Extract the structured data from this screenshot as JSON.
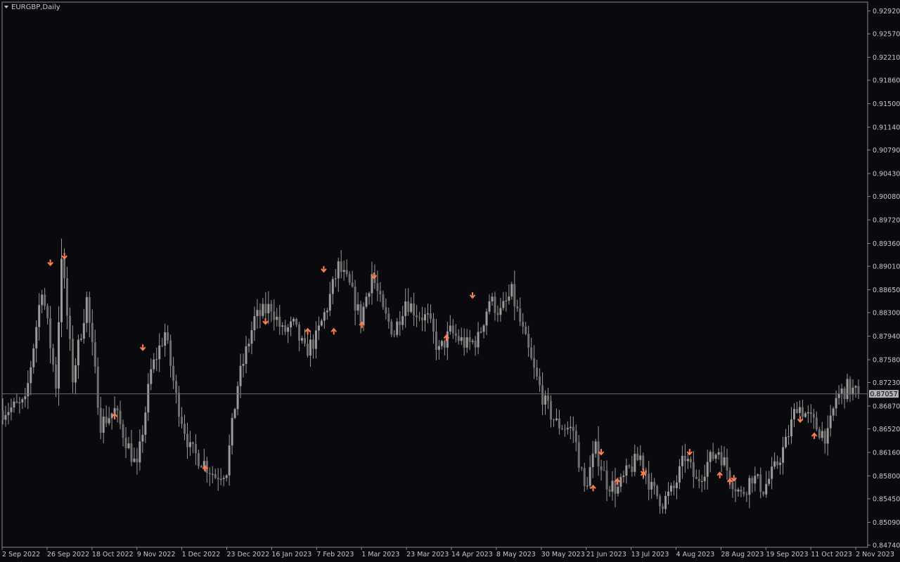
{
  "window": {
    "title": "EURGBP,Daily"
  },
  "price_axis": {
    "ticks": [
      "0.92920",
      "0.92570",
      "0.92210",
      "0.91860",
      "0.91500",
      "0.91140",
      "0.90790",
      "0.90430",
      "0.90080",
      "0.89720",
      "0.89360",
      "0.89010",
      "0.88650",
      "0.88300",
      "0.87940",
      "0.87580",
      "0.87230",
      "0.86870",
      "0.86520",
      "0.86160",
      "0.85800",
      "0.85450",
      "0.85090",
      "0.84740"
    ],
    "current_price": "0.87057"
  },
  "time_axis": {
    "labels": [
      "2 Sep 2022",
      "26 Sep 2022",
      "18 Oct 2022",
      "9 Nov 2022",
      "1 Dec 2022",
      "23 Dec 2022",
      "16 Jan 2023",
      "7 Feb 2023",
      "1 Mar 2023",
      "23 Mar 2023",
      "14 Apr 2023",
      "8 May 2023",
      "30 May 2023",
      "21 Jun 2023",
      "13 Jul 2023",
      "4 Aug 2023",
      "28 Aug 2023",
      "19 Sep 2023",
      "11 Oct 2023",
      "2 Nov 2023"
    ]
  },
  "colors": {
    "background": "#0a0a0e",
    "candle": "#9a9a9a",
    "arrow": "#ff7f50",
    "axis_text": "#c8c8c8",
    "price_line": "#6a6a6a"
  },
  "chart_data": {
    "type": "candlestick",
    "symbol": "EURGBP",
    "timeframe": "Daily",
    "ylim": [
      0.8474,
      0.9292
    ],
    "x_range": [
      "2 Sep 2022",
      "2 Nov 2023"
    ],
    "last_price": 0.87057,
    "price_path": [
      [
        0,
        0.868
      ],
      [
        8,
        0.869
      ],
      [
        14,
        0.887
      ],
      [
        19,
        0.872
      ],
      [
        21,
        0.892
      ],
      [
        25,
        0.873
      ],
      [
        30,
        0.885
      ],
      [
        35,
        0.866
      ],
      [
        40,
        0.868
      ],
      [
        48,
        0.859
      ],
      [
        53,
        0.874
      ],
      [
        58,
        0.88
      ],
      [
        62,
        0.87
      ],
      [
        67,
        0.862
      ],
      [
        72,
        0.86
      ],
      [
        76,
        0.858
      ],
      [
        80,
        0.859
      ],
      [
        84,
        0.872
      ],
      [
        90,
        0.882
      ],
      [
        96,
        0.884
      ],
      [
        100,
        0.88
      ],
      [
        104,
        0.881
      ],
      [
        108,
        0.877
      ],
      [
        112,
        0.879
      ],
      [
        116,
        0.884
      ],
      [
        120,
        0.89
      ],
      [
        124,
        0.887
      ],
      [
        128,
        0.882
      ],
      [
        132,
        0.889
      ],
      [
        136,
        0.883
      ],
      [
        140,
        0.88
      ],
      [
        144,
        0.885
      ],
      [
        148,
        0.883
      ],
      [
        152,
        0.882
      ],
      [
        156,
        0.877
      ],
      [
        160,
        0.88
      ],
      [
        166,
        0.878
      ],
      [
        170,
        0.879
      ],
      [
        174,
        0.885
      ],
      [
        178,
        0.883
      ],
      [
        182,
        0.886
      ],
      [
        186,
        0.88
      ],
      [
        190,
        0.874
      ],
      [
        194,
        0.869
      ],
      [
        198,
        0.866
      ],
      [
        204,
        0.865
      ],
      [
        208,
        0.856
      ],
      [
        212,
        0.862
      ],
      [
        216,
        0.857
      ],
      [
        220,
        0.856
      ],
      [
        224,
        0.859
      ],
      [
        228,
        0.861
      ],
      [
        232,
        0.856
      ],
      [
        236,
        0.854
      ],
      [
        240,
        0.856
      ],
      [
        244,
        0.861
      ],
      [
        248,
        0.857
      ],
      [
        252,
        0.86
      ],
      [
        256,
        0.862
      ],
      [
        260,
        0.858
      ],
      [
        264,
        0.855
      ],
      [
        268,
        0.858
      ],
      [
        272,
        0.856
      ],
      [
        276,
        0.859
      ],
      [
        280,
        0.863
      ],
      [
        284,
        0.869
      ],
      [
        288,
        0.867
      ],
      [
        292,
        0.865
      ],
      [
        295,
        0.864
      ],
      [
        298,
        0.87
      ],
      [
        302,
        0.8715
      ],
      [
        306,
        0.87057
      ]
    ],
    "fractal_markers": {
      "up_fractal_arrows": [
        [
          "26 Sep 2022",
          0.892
        ],
        [
          "3 Oct 2022",
          0.893
        ],
        [
          "11 Nov 2022",
          0.879
        ],
        [
          "11 Jan 2023",
          0.883
        ],
        [
          "9 Feb 2023",
          0.891
        ],
        [
          "6 Mar 2023",
          0.89
        ],
        [
          "24 Apr 2023",
          0.887
        ],
        [
          "27 Jun 2023",
          0.863
        ],
        [
          "18 Jul 2023",
          0.86
        ],
        [
          "10 Aug 2023",
          0.863
        ],
        [
          "1 Sep 2023",
          0.859
        ],
        [
          "4 Oct 2023",
          0.868
        ]
      ],
      "down_fractal_arrows": [
        [
          "28 Oct 2022",
          0.866
        ],
        [
          "12 Dec 2022",
          0.858
        ],
        [
          "1 Feb 2023",
          0.879
        ],
        [
          "14 Feb 2023",
          0.879
        ],
        [
          "28 Feb 2023",
          0.88
        ],
        [
          "11 Apr 2023",
          0.878
        ],
        [
          "23 Jun 2023",
          0.855
        ],
        [
          "5 Jul 2023",
          0.856
        ],
        [
          "18 Jul 2023",
          0.857
        ],
        [
          "25 Aug 2023",
          0.857
        ],
        [
          "30 Aug 2023",
          0.856
        ],
        [
          "11 Oct 2023",
          0.863
        ]
      ]
    }
  }
}
